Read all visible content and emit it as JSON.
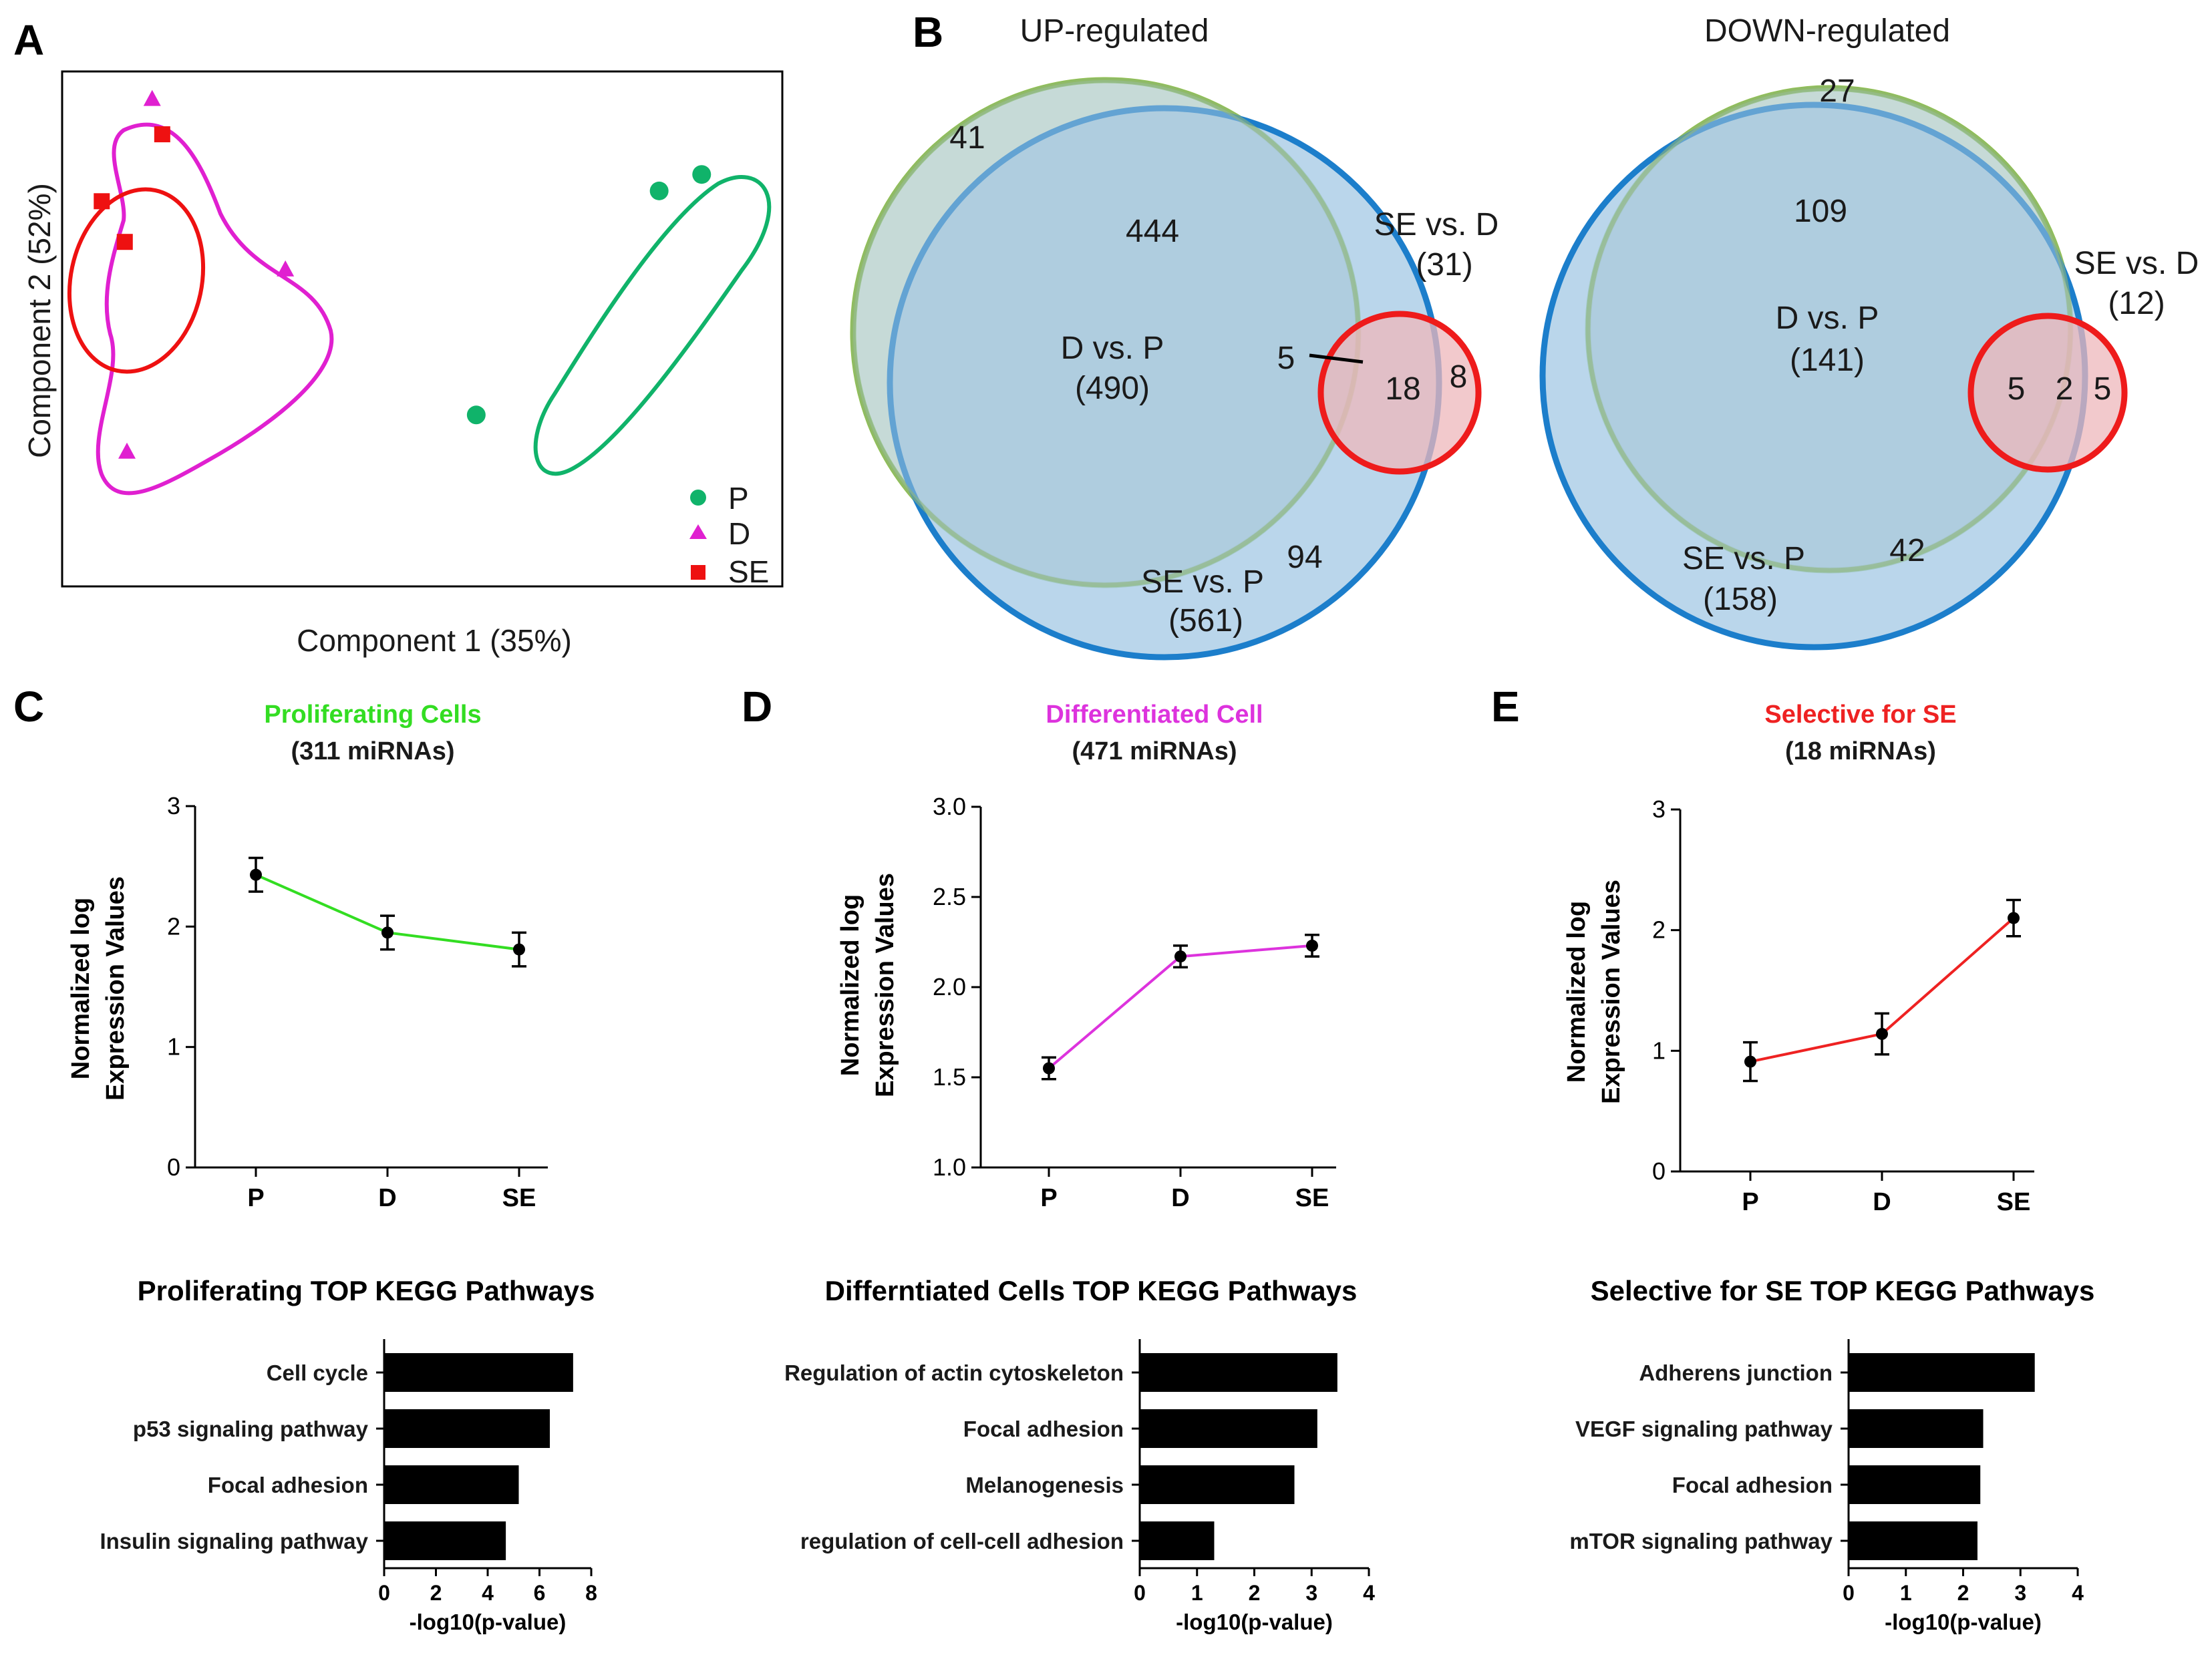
{
  "panels": {
    "A": "A",
    "B": "B",
    "C": "C",
    "D": "D",
    "E": "E"
  },
  "colors": {
    "P": "#10b36a",
    "D": "#e020d0",
    "SE": "#ee1111",
    "green_line": "#33dd22",
    "magenta_line": "#dd33dd",
    "red_line": "#ee2222",
    "venn_green": "#8fc04d",
    "venn_blue": "#1c7ecb",
    "venn_red": "#ee1b1b"
  },
  "pca": {
    "xlabel": "Component 1 (35%)",
    "ylabel": "Component 2 (52%)",
    "legend": [
      {
        "label": "P",
        "marker": "circle",
        "color": "#10b36a"
      },
      {
        "label": "D",
        "marker": "triangle",
        "color": "#e020d0"
      },
      {
        "label": "SE",
        "marker": "square",
        "color": "#ee1111"
      }
    ],
    "points": [
      {
        "group": "P",
        "x": 0.829,
        "y": 0.768
      },
      {
        "group": "P",
        "x": 0.888,
        "y": 0.8
      },
      {
        "group": "P",
        "x": 0.575,
        "y": 0.333
      },
      {
        "group": "D",
        "x": 0.125,
        "y": 0.946
      },
      {
        "group": "D",
        "x": 0.31,
        "y": 0.615
      },
      {
        "group": "D",
        "x": 0.09,
        "y": 0.261
      },
      {
        "group": "SE",
        "x": 0.139,
        "y": 0.878
      },
      {
        "group": "SE",
        "x": 0.055,
        "y": 0.748
      },
      {
        "group": "SE",
        "x": 0.087,
        "y": 0.669
      }
    ]
  },
  "venn_up": {
    "title": "UP-regulated",
    "counts": {
      "only_dp": "41",
      "dp_sep": "444",
      "arrow_label": "5",
      "triple": "18",
      "only_sed": "8",
      "only_sep": "94"
    },
    "dp_label": "D vs. P",
    "dp_total": "(490)",
    "sep_label": "SE vs. P",
    "sep_total": "(561)",
    "sed_label": "SE vs. D",
    "sed_total": "(31)"
  },
  "venn_down": {
    "title": "DOWN-regulated",
    "counts": {
      "only_dp": "27",
      "dp_sep": "109",
      "left": "5",
      "middle": "2",
      "right": "5",
      "only_sep": "42"
    },
    "dp_label": "D vs. P",
    "dp_total": "(141)",
    "sep_label": "SE vs. P",
    "sep_total": "(158)",
    "sed_label": "SE vs. D",
    "sed_total": "(12)"
  },
  "line_charts": {
    "ylabel1": "Normalized log",
    "ylabel2": "Expression Values",
    "C": {
      "title": "Proliferating Cells",
      "subtitle": "(311 miRNAs)"
    },
    "D": {
      "title": "Differentiated Cell",
      "subtitle": "(471 miRNAs)"
    },
    "E": {
      "title": "Selective for SE",
      "subtitle": "(18 miRNAs)"
    }
  },
  "bar_charts": {
    "C": {
      "title": "Proliferating TOP KEGG Pathways"
    },
    "D": {
      "title": "Differntiated  Cells TOP KEGG Pathways"
    },
    "E": {
      "title": "Selective for SE TOP KEGG Pathways"
    }
  },
  "chart_data": [
    {
      "type": "line",
      "panel": "C",
      "title": "Proliferating Cells",
      "subtitle": "(311 miRNAs)",
      "categories": [
        "P",
        "D",
        "SE"
      ],
      "values": [
        2.43,
        1.95,
        1.81
      ],
      "errors": [
        0.14,
        0.14,
        0.14
      ],
      "ylabel": "Normalized log Expression Values",
      "ylim": [
        0,
        3
      ],
      "yticks": [
        "0",
        "1",
        "2",
        "3"
      ],
      "line_color": "#33dd22"
    },
    {
      "type": "line",
      "panel": "D",
      "title": "Differentiated Cell",
      "subtitle": "(471 miRNAs)",
      "categories": [
        "P",
        "D",
        "SE"
      ],
      "values": [
        1.55,
        2.17,
        2.23
      ],
      "errors": [
        0.06,
        0.06,
        0.06
      ],
      "ylabel": "Normalized log Expression Values",
      "ylim": [
        1.0,
        3.0
      ],
      "yticks": [
        "1.0",
        "1.5",
        "2.0",
        "2.5",
        "3.0"
      ],
      "line_color": "#dd33dd"
    },
    {
      "type": "line",
      "panel": "E",
      "title": "Selective for SE",
      "subtitle": "(18 miRNAs)",
      "categories": [
        "P",
        "D",
        "SE"
      ],
      "values": [
        0.91,
        1.14,
        2.1
      ],
      "errors": [
        0.16,
        0.17,
        0.15
      ],
      "ylabel": "Normalized log Expression Values",
      "ylim": [
        0,
        3
      ],
      "yticks": [
        "0",
        "1",
        "2",
        "3"
      ],
      "line_color": "#ee2222"
    },
    {
      "type": "bar",
      "orientation": "horizontal",
      "panel": "C",
      "title": "Proliferating TOP KEGG Pathways",
      "categories": [
        "Cell cycle",
        "p53 signaling pathway",
        "Focal adhesion",
        "Insulin signaling pathway"
      ],
      "values": [
        7.3,
        6.4,
        5.2,
        4.7
      ],
      "xlabel": "-log10(p-value)",
      "xlim": [
        0,
        8
      ],
      "xticks": [
        "0",
        "2",
        "4",
        "6",
        "8"
      ]
    },
    {
      "type": "bar",
      "orientation": "horizontal",
      "panel": "D",
      "title": "Differntiated  Cells TOP KEGG Pathways",
      "categories": [
        "Regulation of actin cytoskeleton",
        "Focal adhesion",
        "Melanogenesis",
        "regulation of cell-cell adhesion"
      ],
      "values": [
        3.45,
        3.1,
        2.7,
        1.3
      ],
      "xlabel": "-log10(p-value)",
      "xlim": [
        0,
        4
      ],
      "xticks": [
        "0",
        "1",
        "2",
        "3",
        "4"
      ]
    },
    {
      "type": "bar",
      "orientation": "horizontal",
      "panel": "E",
      "title": "Selective for SE TOP KEGG Pathways",
      "categories": [
        "Adherens junction",
        "VEGF signaling pathway",
        "Focal adhesion",
        "mTOR signaling pathway"
      ],
      "values": [
        3.25,
        2.35,
        2.3,
        2.25
      ],
      "xlabel": "-log10(p-value)",
      "xlim": [
        0,
        4
      ],
      "xticks": [
        "0",
        "1",
        "2",
        "3",
        "4"
      ]
    }
  ]
}
